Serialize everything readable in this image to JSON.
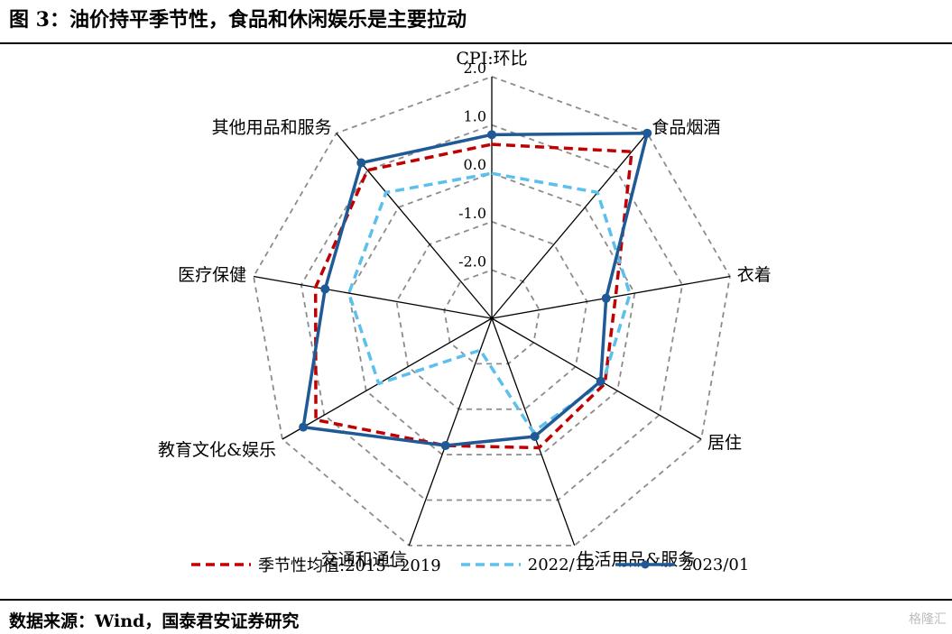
{
  "title": "图 3：油价持平季节性，食品和休闲娱乐是主要拉动",
  "source": "数据来源：Wind，国泰君安证券研究",
  "watermark": "格隆汇",
  "chart_data": {
    "type": "radar",
    "axes": [
      "CPI:环比",
      "食品烟酒",
      "衣着",
      "居住",
      "生活用品&服务",
      "交通和通信",
      "教育文化&娱乐",
      "医疗保健",
      "其他用品和服务"
    ],
    "rlim": [
      -3.0,
      2.0
    ],
    "ticks": [
      2.0,
      1.0,
      0.0,
      -1.0,
      -2.0
    ],
    "tick_labels": [
      "2.0",
      "1.0",
      "0.0",
      "-1.0",
      "-2.0"
    ],
    "grid": true,
    "legend_position": "bottom",
    "series": [
      {
        "name": "季节性均值:2015~2019",
        "style": "dashed",
        "color": "#c00000",
        "values": [
          0.6,
          1.5,
          -0.4,
          -0.3,
          -0.15,
          -0.2,
          1.2,
          0.7,
          1.0
        ]
      },
      {
        "name": "2022/12",
        "style": "dashed",
        "color": "#5bc0eb",
        "values": [
          0.0,
          0.4,
          -0.1,
          -0.35,
          -0.5,
          -2.3,
          -0.3,
          0.0,
          0.4
        ]
      },
      {
        "name": "2023/01",
        "style": "solid-marker",
        "color": "#1f5a96",
        "values": [
          0.8,
          2.0,
          -0.6,
          -0.4,
          -0.4,
          -0.2,
          1.5,
          0.5,
          1.2
        ]
      }
    ]
  }
}
